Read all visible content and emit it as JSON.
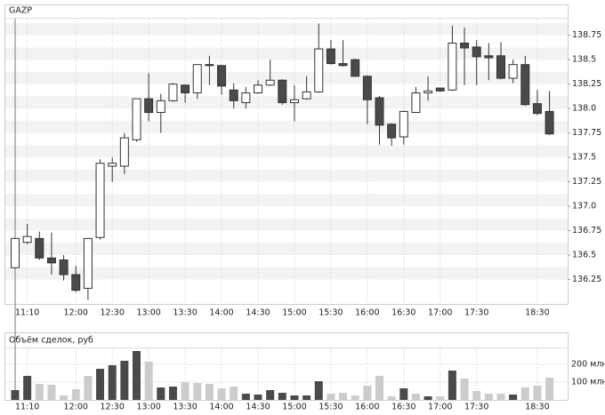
{
  "chart_data": {
    "type": "candlestick",
    "title": "GAZP",
    "categories": [
      null,
      "11:10",
      null,
      null,
      null,
      "12:00",
      null,
      null,
      "12:30",
      null,
      null,
      "13:00",
      null,
      null,
      "13:30",
      null,
      null,
      "14:00",
      null,
      null,
      "14:30",
      null,
      null,
      "15:00",
      null,
      null,
      "15:30",
      null,
      null,
      "16:00",
      null,
      null,
      "16:30",
      null,
      null,
      "17:00",
      null,
      null,
      "17:30",
      null,
      null,
      null,
      null,
      "18:30",
      null
    ],
    "open": [
      136.37,
      136.63,
      136.67,
      136.47,
      136.45,
      136.3,
      136.16,
      136.68,
      137.41,
      137.41,
      137.68,
      138.1,
      137.96,
      138.08,
      138.24,
      138.16,
      138.45,
      138.44,
      138.19,
      138.06,
      138.16,
      138.24,
      138.29,
      138.06,
      138.1,
      138.17,
      138.61,
      138.46,
      138.5,
      138.33,
      138.11,
      137.84,
      137.71,
      137.96,
      138.16,
      138.21,
      138.19,
      138.67,
      138.63,
      138.54,
      138.54,
      138.31,
      138.45,
      138.05,
      137.97
    ],
    "high": [
      136.67,
      136.82,
      136.74,
      136.73,
      136.5,
      136.39,
      136.67,
      137.48,
      137.5,
      137.75,
      138.1,
      138.36,
      138.15,
      138.26,
      138.24,
      138.45,
      138.54,
      138.44,
      138.26,
      138.22,
      138.29,
      138.5,
      138.3,
      138.24,
      138.33,
      138.87,
      138.7,
      138.7,
      138.51,
      138.34,
      138.13,
      137.85,
      137.98,
      138.22,
      138.33,
      138.21,
      138.85,
      138.83,
      138.7,
      138.67,
      138.68,
      138.5,
      138.54,
      138.19,
      138.18
    ],
    "low": [
      136.37,
      136.61,
      136.45,
      136.3,
      136.24,
      136.12,
      136.04,
      136.66,
      137.25,
      137.33,
      137.66,
      137.87,
      137.75,
      138.07,
      138.06,
      138.1,
      138.24,
      138.14,
      138.0,
      138.0,
      138.15,
      138.23,
      138.04,
      137.87,
      138.09,
      138.16,
      138.45,
      138.43,
      138.33,
      137.84,
      137.63,
      137.62,
      137.63,
      137.96,
      138.08,
      138.17,
      138.18,
      138.24,
      138.24,
      138.29,
      138.3,
      138.26,
      138.03,
      137.93,
      137.73
    ],
    "close": [
      136.67,
      136.69,
      136.47,
      136.42,
      136.3,
      136.14,
      136.67,
      137.44,
      137.44,
      137.7,
      138.1,
      137.96,
      138.08,
      138.25,
      138.16,
      138.45,
      138.44,
      138.23,
      138.08,
      138.16,
      138.24,
      138.29,
      138.06,
      138.09,
      138.17,
      138.61,
      138.46,
      138.44,
      138.33,
      138.09,
      137.83,
      137.7,
      137.97,
      138.16,
      138.18,
      138.18,
      138.67,
      138.62,
      138.53,
      138.52,
      138.31,
      138.45,
      138.04,
      137.95,
      137.74
    ],
    "up_color": "#ffffff",
    "down_color": "#4a4a4a",
    "ylim": [
      136.0,
      138.92
    ],
    "yticks": [
      136.25,
      136.5,
      136.75,
      {
        "value": 137,
        "label": "137.0"
      },
      137.25,
      137.5,
      137.75,
      {
        "value": 138,
        "label": "138.0"
      },
      138.25,
      138.5,
      138.75
    ],
    "grid": true,
    "volume": {
      "title": "Объём сделок, руб",
      "values": [
        55,
        135,
        90,
        85,
        25,
        60,
        135,
        175,
        195,
        220,
        275,
        215,
        70,
        75,
        100,
        95,
        90,
        65,
        75,
        35,
        30,
        55,
        40,
        25,
        25,
        105,
        35,
        40,
        25,
        80,
        135,
        20,
        65,
        35,
        20,
        20,
        165,
        120,
        50,
        35,
        35,
        30,
        70,
        80,
        125
      ],
      "colors": [
        "#4a4a4a",
        "#4a4a4a",
        "#cccccc",
        "#cccccc",
        "#cccccc",
        "#cccccc",
        "#cccccc",
        "#4a4a4a",
        "#4a4a4a",
        "#4a4a4a",
        "#4a4a4a",
        "#cccccc",
        "#4a4a4a",
        "#4a4a4a",
        "#cccccc",
        "#cccccc",
        "#cccccc",
        "#cccccc",
        "#cccccc",
        "#4a4a4a",
        "#4a4a4a",
        "#4a4a4a",
        "#4a4a4a",
        "#4a4a4a",
        "#4a4a4a",
        "#4a4a4a",
        "#cccccc",
        "#cccccc",
        "#cccccc",
        "#cccccc",
        "#cccccc",
        "#cccccc",
        "#4a4a4a",
        "#cccccc",
        "#4a4a4a",
        "#cccccc",
        "#4a4a4a",
        "#cccccc",
        "#cccccc",
        "#cccccc",
        "#cccccc",
        "#4a4a4a",
        "#cccccc",
        "#cccccc",
        "#cccccc"
      ],
      "ylim": [
        0,
        290
      ],
      "yticks": [
        {
          "value": 100,
          "label": "100 млн"
        },
        {
          "value": 200,
          "label": "200 млн"
        }
      ]
    }
  }
}
